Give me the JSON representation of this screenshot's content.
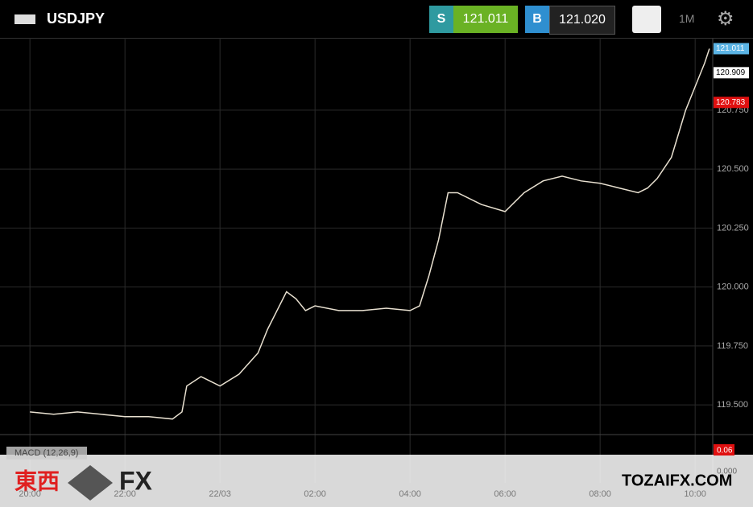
{
  "header": {
    "symbol": "USDJPY",
    "sell_label": "S",
    "sell": "121.011",
    "buy_label": "B",
    "buy": "121.020",
    "timeframe": "1M"
  },
  "chart_data": {
    "type": "line",
    "color": "#e8e0d0",
    "grid": true,
    "x": [
      0,
      0.5,
      1,
      1.5,
      2,
      2.5,
      3,
      3.2,
      3.3,
      3.6,
      4,
      4.4,
      4.8,
      5,
      5.2,
      5.4,
      5.6,
      5.8,
      6,
      6.5,
      7,
      7.5,
      8,
      8.2,
      8.4,
      8.6,
      8.8,
      9,
      9.5,
      10,
      10.4,
      10.8,
      11.2,
      11.6,
      12,
      12.4,
      12.8,
      13,
      13.2,
      13.5,
      13.8,
      14,
      14.2,
      14.3
    ],
    "values": [
      119.47,
      119.46,
      119.47,
      119.46,
      119.45,
      119.45,
      119.44,
      119.47,
      119.58,
      119.62,
      119.58,
      119.63,
      119.72,
      119.82,
      119.9,
      119.98,
      119.95,
      119.9,
      119.92,
      119.9,
      119.9,
      119.91,
      119.9,
      119.92,
      120.05,
      120.2,
      120.4,
      120.4,
      120.35,
      120.32,
      120.4,
      120.45,
      120.47,
      120.45,
      120.44,
      120.42,
      120.4,
      120.42,
      120.46,
      120.55,
      120.75,
      120.85,
      120.95,
      121.011
    ],
    "xlim": [
      -0.63,
      14.37
    ],
    "xticks": [
      {
        "value": 0,
        "label": "20:00"
      },
      {
        "value": 2,
        "label": "22:00"
      },
      {
        "value": 4,
        "label": "22/03"
      },
      {
        "value": 6,
        "label": "02:00"
      },
      {
        "value": 8,
        "label": "04:00"
      },
      {
        "value": 10,
        "label": "06:00"
      },
      {
        "value": 12,
        "label": "08:00"
      },
      {
        "value": 14,
        "label": "10:00"
      }
    ],
    "ylim": [
      119.374,
      121.057
    ],
    "yticks": [
      {
        "value": 119.5,
        "label": "119.500"
      },
      {
        "value": 119.75,
        "label": "119.750"
      },
      {
        "value": 120,
        "label": "120.000"
      },
      {
        "value": 120.25,
        "label": "120.250"
      },
      {
        "value": 120.5,
        "label": "120.500"
      },
      {
        "value": 120.75,
        "label": "120.750"
      }
    ],
    "price_tags": [
      {
        "value": 121.011,
        "label": "121.011",
        "color": "#5bb4e5"
      },
      {
        "value": 120.909,
        "label": "120.909",
        "color": "#ffffff"
      },
      {
        "value": 120.783,
        "label": "120.783",
        "color": "#e01010"
      }
    ]
  },
  "macd": {
    "title": "MACD (12,26,9)",
    "value": "0.06",
    "zero": "0.000"
  },
  "watermark": {
    "cjk": "東西",
    "fx": "FX",
    "site": "TOZAIFX.COM"
  }
}
